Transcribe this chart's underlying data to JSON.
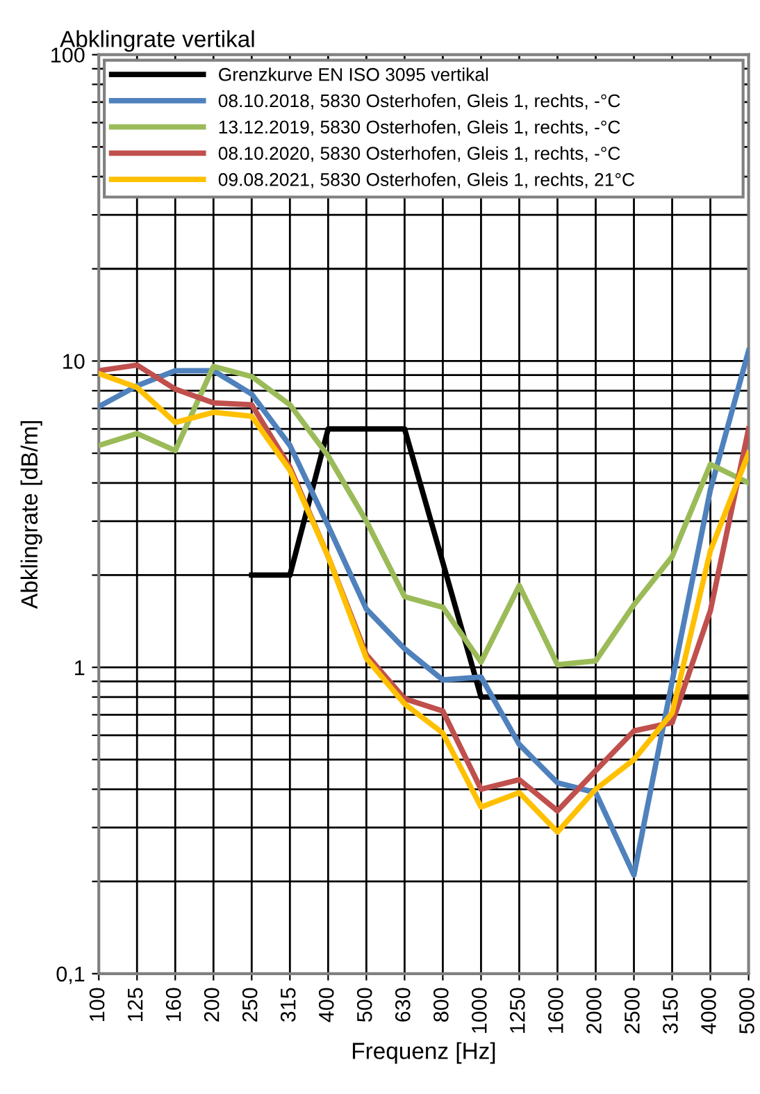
{
  "chart_data": {
    "type": "line",
    "title": "Abklingrate vertikal",
    "xlabel": "Frequenz [Hz]",
    "ylabel": "Abklingrate [dB/m]",
    "categories": [
      "100",
      "125",
      "160",
      "200",
      "250",
      "315",
      "400",
      "500",
      "630",
      "800",
      "1000",
      "1250",
      "1600",
      "2000",
      "2500",
      "3150",
      "4000",
      "5000"
    ],
    "series": [
      {
        "name": "Grenzkurve EN ISO 3095 vertikal",
        "color": "#000000",
        "values": [
          null,
          null,
          null,
          null,
          2.0,
          2.0,
          6.0,
          6.0,
          6.0,
          2.2,
          0.8,
          0.8,
          0.8,
          0.8,
          0.8,
          0.8,
          0.8,
          0.8
        ]
      },
      {
        "name": "08.10.2018, 5830 Osterhofen, Gleis 1, rechts, -°C",
        "color": "#4f81bd",
        "values": [
          7.1,
          8.3,
          9.3,
          9.3,
          7.8,
          5.3,
          2.9,
          1.55,
          1.15,
          0.91,
          0.93,
          0.56,
          0.42,
          0.39,
          0.21,
          0.9,
          3.8,
          10.8
        ]
      },
      {
        "name": "13.12.2019, 5830 Osterhofen, Gleis 1, rechts, -°C",
        "color": "#9bbb59",
        "values": [
          5.3,
          5.8,
          5.1,
          9.6,
          8.9,
          7.2,
          4.9,
          3.0,
          1.7,
          1.57,
          1.04,
          1.85,
          1.02,
          1.05,
          1.6,
          2.3,
          4.6,
          4.0
        ]
      },
      {
        "name": "08.10.2020, 5830 Osterhofen, Gleis 1, rechts, -°C",
        "color": "#c0504d",
        "values": [
          9.3,
          9.7,
          8.1,
          7.3,
          7.2,
          4.5,
          2.3,
          1.1,
          0.79,
          0.72,
          0.4,
          0.43,
          0.34,
          0.46,
          0.62,
          0.66,
          1.53,
          6.0
        ]
      },
      {
        "name": "09.08.2021, 5830 Osterhofen, Gleis 1, rechts, 21°C",
        "color": "#ffc000",
        "values": [
          9.1,
          8.2,
          6.3,
          6.8,
          6.6,
          4.4,
          2.3,
          1.07,
          0.76,
          0.61,
          0.35,
          0.39,
          0.29,
          0.4,
          0.5,
          0.71,
          2.4,
          5.0
        ]
      }
    ],
    "log": true,
    "ylim": [
      0.1,
      100
    ],
    "yticks": [
      {
        "value": 0.1,
        "label": "0,1"
      },
      {
        "value": 0.2,
        "label": null
      },
      {
        "value": 0.3,
        "label": null
      },
      {
        "value": 0.4,
        "label": null
      },
      {
        "value": 0.5,
        "label": null
      },
      {
        "value": 0.6,
        "label": null
      },
      {
        "value": 0.7,
        "label": null
      },
      {
        "value": 0.8,
        "label": null
      },
      {
        "value": 0.9,
        "label": null
      },
      1,
      {
        "value": 2,
        "label": null
      },
      {
        "value": 3,
        "label": null
      },
      {
        "value": 4,
        "label": null
      },
      {
        "value": 5,
        "label": null
      },
      {
        "value": 6,
        "label": null
      },
      {
        "value": 7,
        "label": null
      },
      {
        "value": 8,
        "label": null
      },
      {
        "value": 9,
        "label": null
      },
      10,
      {
        "value": 20,
        "label": null
      },
      {
        "value": 30,
        "label": null
      },
      {
        "value": 40,
        "label": null
      },
      {
        "value": 50,
        "label": null
      },
      {
        "value": 60,
        "label": null
      },
      {
        "value": 70,
        "label": null
      },
      {
        "value": 80,
        "label": null
      },
      {
        "value": 90,
        "label": null
      },
      100
    ],
    "grid": true,
    "legend": "top",
    "marker": "none",
    "line_style": "solid"
  }
}
